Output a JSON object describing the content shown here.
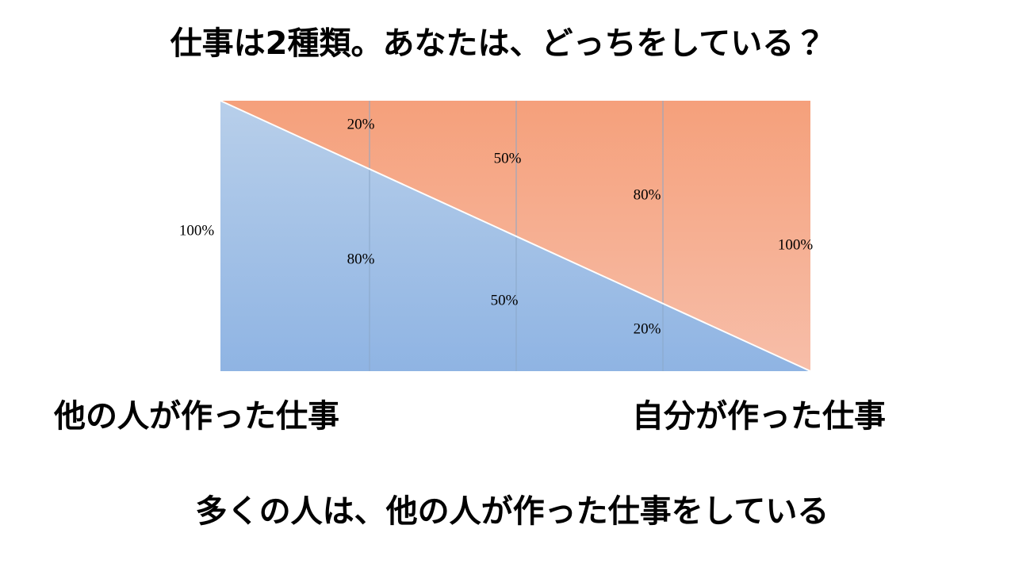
{
  "title": "仕事は2種類。あなたは、どっちをしている？",
  "diagram": {
    "left_edge_label": "100%",
    "right_edge_label": "100%",
    "columns": [
      {
        "top": "20%",
        "bottom": "80%"
      },
      {
        "top": "50%",
        "bottom": "50%"
      },
      {
        "top": "80%",
        "bottom": "20%"
      }
    ]
  },
  "left_caption": "他の人が作った仕事",
  "right_caption": "自分が作った仕事",
  "conclusion": "多くの人は、他の人が作った仕事をしている"
}
